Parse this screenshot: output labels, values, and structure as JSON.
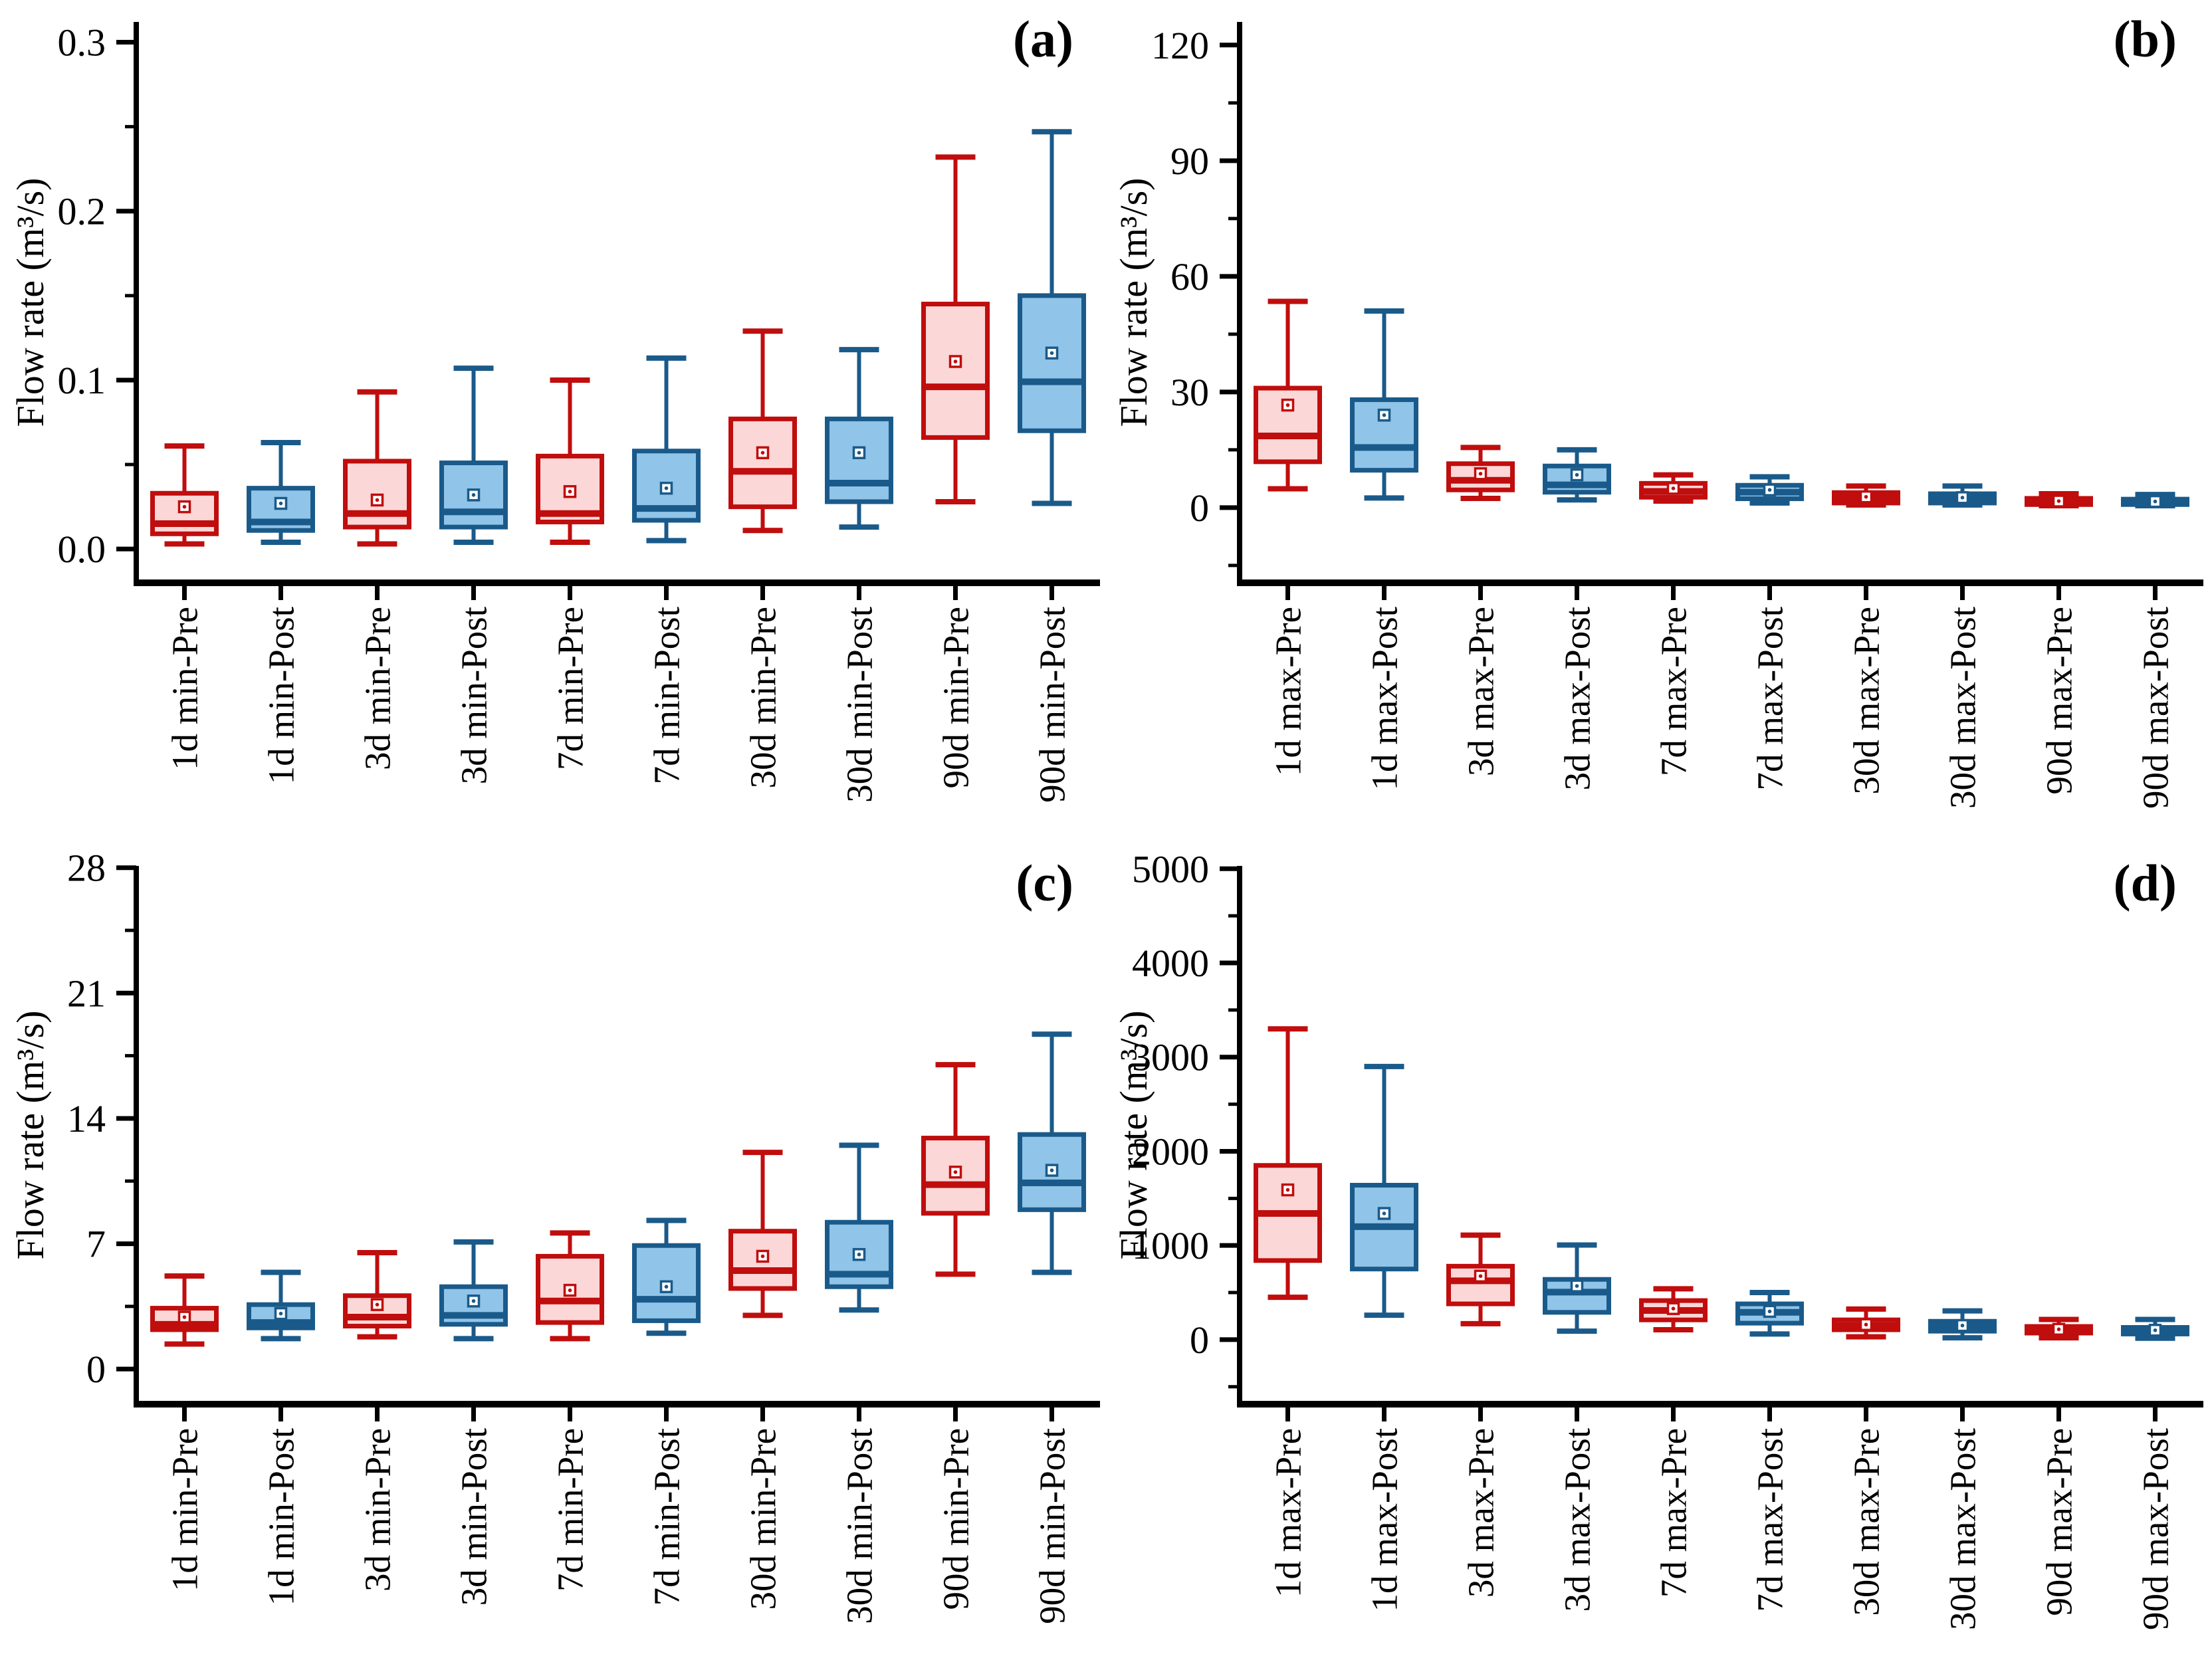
{
  "style": {
    "pre_stroke": "#c00d0d",
    "pre_fill": "#fcd7d7",
    "post_stroke": "#1a5a8a",
    "post_fill": "#90c4e8",
    "axis_color": "#000000",
    "background": "#ffffff"
  },
  "chart_data": [
    {
      "id": "a",
      "type": "box",
      "label": "(a)",
      "ylabel": "Flow rate (m³/s)",
      "xlabel": "",
      "legend": "none",
      "grid": false,
      "ylim": [
        -0.02,
        0.312
      ],
      "yticks": [
        {
          "v": 0.0,
          "t": "0.0"
        },
        {
          "v": 0.1,
          "t": "0.1"
        },
        {
          "v": 0.2,
          "t": "0.2"
        },
        {
          "v": 0.3,
          "t": "0.3"
        }
      ],
      "categories": [
        "1d min-Pre",
        "1d min-Post",
        "3d min-Pre",
        "3d min-Post",
        "7d min-Pre",
        "7d min-Post",
        "30d min-Pre",
        "30d min-Post",
        "90d min-Pre",
        "90d min-Post"
      ],
      "boxes": [
        {
          "label": "1d min-Pre",
          "group": "pre",
          "low": 0.003,
          "q1": 0.009,
          "median": 0.015,
          "q3": 0.033,
          "high": 0.061,
          "mean": 0.025
        },
        {
          "label": "1d min-Post",
          "group": "post",
          "low": 0.004,
          "q1": 0.011,
          "median": 0.016,
          "q3": 0.036,
          "high": 0.063,
          "mean": 0.027
        },
        {
          "label": "3d min-Pre",
          "group": "pre",
          "low": 0.003,
          "q1": 0.013,
          "median": 0.021,
          "q3": 0.052,
          "high": 0.093,
          "mean": 0.029
        },
        {
          "label": "3d min-Post",
          "group": "post",
          "low": 0.004,
          "q1": 0.013,
          "median": 0.022,
          "q3": 0.051,
          "high": 0.107,
          "mean": 0.032
        },
        {
          "label": "7d min-Pre",
          "group": "pre",
          "low": 0.004,
          "q1": 0.016,
          "median": 0.021,
          "q3": 0.055,
          "high": 0.1,
          "mean": 0.034
        },
        {
          "label": "7d min-Post",
          "group": "post",
          "low": 0.005,
          "q1": 0.017,
          "median": 0.024,
          "q3": 0.058,
          "high": 0.113,
          "mean": 0.036
        },
        {
          "label": "30d min-Pre",
          "group": "pre",
          "low": 0.011,
          "q1": 0.025,
          "median": 0.046,
          "q3": 0.077,
          "high": 0.129,
          "mean": 0.057
        },
        {
          "label": "30d min-Post",
          "group": "post",
          "low": 0.013,
          "q1": 0.028,
          "median": 0.039,
          "q3": 0.077,
          "high": 0.118,
          "mean": 0.057
        },
        {
          "label": "90d min-Pre",
          "group": "pre",
          "low": 0.028,
          "q1": 0.066,
          "median": 0.096,
          "q3": 0.145,
          "high": 0.232,
          "mean": 0.111
        },
        {
          "label": "90d min-Post",
          "group": "post",
          "low": 0.027,
          "q1": 0.07,
          "median": 0.099,
          "q3": 0.15,
          "high": 0.247,
          "mean": 0.116
        }
      ]
    },
    {
      "id": "b",
      "type": "box",
      "label": "(b)",
      "ylabel": "Flow rate (m³/s)",
      "xlabel": "",
      "legend": "none",
      "grid": false,
      "ylim": [
        -19.5,
        126
      ],
      "yticks": [
        {
          "v": 0,
          "t": "0"
        },
        {
          "v": 30,
          "t": "30"
        },
        {
          "v": 60,
          "t": "60"
        },
        {
          "v": 90,
          "t": "90"
        },
        {
          "v": 120,
          "t": "120"
        }
      ],
      "categories": [
        "1d max-Pre",
        "1d max-Post",
        "3d max-Pre",
        "3d max-Post",
        "7d max-Pre",
        "7d max-Post",
        "30d max-Pre",
        "30d max-Post",
        "90d max-Pre",
        "90d max-Post"
      ],
      "boxes": [
        {
          "label": "1d max-Pre",
          "group": "pre",
          "low": 4.9,
          "q1": 11.9,
          "median": 18.6,
          "q3": 31.0,
          "high": 53.5,
          "mean": 26.6
        },
        {
          "label": "1d max-Post",
          "group": "post",
          "low": 2.5,
          "q1": 9.7,
          "median": 15.6,
          "q3": 28.0,
          "high": 51.0,
          "mean": 24.0
        },
        {
          "label": "3d max-Pre",
          "group": "pre",
          "low": 2.4,
          "q1": 4.6,
          "median": 7.1,
          "q3": 11.4,
          "high": 15.6,
          "mean": 8.8
        },
        {
          "label": "3d max-Post",
          "group": "post",
          "low": 2.0,
          "q1": 4.0,
          "median": 5.9,
          "q3": 10.8,
          "high": 15.0,
          "mean": 8.5
        },
        {
          "label": "7d max-Pre",
          "group": "pre",
          "low": 1.7,
          "q1": 2.7,
          "median": 4.2,
          "q3": 6.3,
          "high": 8.5,
          "mean": 5.0
        },
        {
          "label": "7d max-Post",
          "group": "post",
          "low": 1.2,
          "q1": 2.3,
          "median": 4.0,
          "q3": 5.8,
          "high": 8.0,
          "mean": 4.6
        },
        {
          "label": "30d max-Pre",
          "group": "pre",
          "low": 0.7,
          "q1": 1.2,
          "median": 2.6,
          "q3": 3.9,
          "high": 5.6,
          "mean": 2.8
        },
        {
          "label": "30d max-Post",
          "group": "post",
          "low": 0.7,
          "q1": 1.2,
          "median": 2.4,
          "q3": 3.6,
          "high": 5.6,
          "mean": 2.6
        },
        {
          "label": "90d max-Pre",
          "group": "pre",
          "low": 0.5,
          "q1": 0.8,
          "median": 1.6,
          "q3": 2.4,
          "high": 3.6,
          "mean": 1.7
        },
        {
          "label": "90d max-Post",
          "group": "post",
          "low": 0.5,
          "q1": 0.8,
          "median": 1.5,
          "q3": 2.2,
          "high": 3.4,
          "mean": 1.6
        }
      ]
    },
    {
      "id": "c",
      "type": "box",
      "label": "(c)",
      "ylabel": "Flow rate (m³/s)",
      "xlabel": "",
      "legend": "none",
      "grid": false,
      "ylim": [
        -1.96,
        28.1
      ],
      "yticks": [
        {
          "v": 0,
          "t": "0"
        },
        {
          "v": 7,
          "t": "7"
        },
        {
          "v": 14,
          "t": "14"
        },
        {
          "v": 21,
          "t": "21"
        },
        {
          "v": 28,
          "t": "28"
        }
      ],
      "categories": [
        "1d min-Pre",
        "1d min-Post",
        "3d min-Pre",
        "3d min-Post",
        "7d min-Pre",
        "7d min-Post",
        "30d min-Pre",
        "30d min-Post",
        "90d min-Pre",
        "90d min-Post"
      ],
      "boxes": [
        {
          "label": "1d min-Pre",
          "group": "pre",
          "low": 1.4,
          "q1": 2.2,
          "median": 2.5,
          "q3": 3.4,
          "high": 5.2,
          "mean": 2.9
        },
        {
          "label": "1d min-Post",
          "group": "post",
          "low": 1.7,
          "q1": 2.3,
          "median": 2.6,
          "q3": 3.6,
          "high": 5.4,
          "mean": 3.1
        },
        {
          "label": "3d min-Pre",
          "group": "pre",
          "low": 1.8,
          "q1": 2.4,
          "median": 2.9,
          "q3": 4.1,
          "high": 6.5,
          "mean": 3.6
        },
        {
          "label": "3d min-Post",
          "group": "post",
          "low": 1.7,
          "q1": 2.5,
          "median": 3.0,
          "q3": 4.6,
          "high": 7.1,
          "mean": 3.8
        },
        {
          "label": "7d min-Pre",
          "group": "pre",
          "low": 1.7,
          "q1": 2.6,
          "median": 3.8,
          "q3": 6.3,
          "high": 7.6,
          "mean": 4.4
        },
        {
          "label": "7d min-Post",
          "group": "post",
          "low": 2.0,
          "q1": 2.7,
          "median": 3.9,
          "q3": 6.9,
          "high": 8.3,
          "mean": 4.6
        },
        {
          "label": "30d min-Pre",
          "group": "pre",
          "low": 3.0,
          "q1": 4.5,
          "median": 5.5,
          "q3": 7.7,
          "high": 12.1,
          "mean": 6.3
        },
        {
          "label": "30d min-Post",
          "group": "post",
          "low": 3.3,
          "q1": 4.6,
          "median": 5.3,
          "q3": 8.2,
          "high": 12.5,
          "mean": 6.4
        },
        {
          "label": "90d min-Pre",
          "group": "pre",
          "low": 5.3,
          "q1": 8.7,
          "median": 10.3,
          "q3": 12.9,
          "high": 17.0,
          "mean": 11.0
        },
        {
          "label": "90d min-Post",
          "group": "post",
          "low": 5.4,
          "q1": 8.9,
          "median": 10.4,
          "q3": 13.1,
          "high": 18.7,
          "mean": 11.1
        }
      ]
    },
    {
      "id": "d",
      "type": "box",
      "label": "(d)",
      "ylabel": "Flow rate (m³/s)",
      "xlabel": "",
      "legend": "none",
      "grid": false,
      "ylim": [
        -685,
        5030
      ],
      "yticks": [
        {
          "v": 0,
          "t": "0"
        },
        {
          "v": 1000,
          "t": "1000"
        },
        {
          "v": 2000,
          "t": "2000"
        },
        {
          "v": 3000,
          "t": "3000"
        },
        {
          "v": 4000,
          "t": "4000"
        },
        {
          "v": 5000,
          "t": "5000"
        }
      ],
      "categories": [
        "1d max-Pre",
        "1d max-Post",
        "3d max-Pre",
        "3d max-Post",
        "7d max-Pre",
        "7d max-Post",
        "30d max-Pre",
        "30d max-Post",
        "90d max-Pre",
        "90d max-Post"
      ],
      "boxes": [
        {
          "label": "1d max-Pre",
          "group": "pre",
          "low": 450,
          "q1": 840,
          "median": 1340,
          "q3": 1850,
          "high": 3300,
          "mean": 1590
        },
        {
          "label": "1d max-Post",
          "group": "post",
          "low": 260,
          "q1": 750,
          "median": 1200,
          "q3": 1640,
          "high": 2900,
          "mean": 1340
        },
        {
          "label": "3d max-Pre",
          "group": "pre",
          "low": 170,
          "q1": 380,
          "median": 625,
          "q3": 780,
          "high": 1110,
          "mean": 675
        },
        {
          "label": "3d max-Post",
          "group": "post",
          "low": 90,
          "q1": 290,
          "median": 505,
          "q3": 640,
          "high": 1005,
          "mean": 570
        },
        {
          "label": "7d max-Pre",
          "group": "pre",
          "low": 105,
          "q1": 210,
          "median": 310,
          "q3": 415,
          "high": 540,
          "mean": 330
        },
        {
          "label": "7d max-Post",
          "group": "post",
          "low": 60,
          "q1": 175,
          "median": 290,
          "q3": 380,
          "high": 500,
          "mean": 300
        },
        {
          "label": "30d max-Pre",
          "group": "pre",
          "low": 30,
          "q1": 105,
          "median": 150,
          "q3": 210,
          "high": 325,
          "mean": 160
        },
        {
          "label": "30d max-Post",
          "group": "post",
          "low": 20,
          "q1": 90,
          "median": 140,
          "q3": 195,
          "high": 305,
          "mean": 150
        },
        {
          "label": "90d max-Pre",
          "group": "pre",
          "low": 20,
          "q1": 70,
          "median": 105,
          "q3": 140,
          "high": 215,
          "mean": 110
        },
        {
          "label": "90d max-Post",
          "group": "post",
          "low": 15,
          "q1": 60,
          "median": 95,
          "q3": 130,
          "high": 215,
          "mean": 100
        }
      ]
    }
  ]
}
